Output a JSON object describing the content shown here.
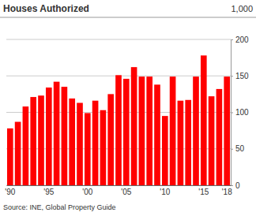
{
  "chart_data": {
    "type": "bar",
    "title": "Houses Authorized",
    "ylabel": "1,000",
    "annotations": [
      "Source: INE, Global Property Guide"
    ],
    "categories": [
      "'90",
      null,
      null,
      null,
      null,
      "'95",
      null,
      null,
      null,
      null,
      "'00",
      null,
      null,
      null,
      null,
      "'05",
      null,
      null,
      null,
      null,
      "'10",
      null,
      null,
      null,
      null,
      "'15",
      null,
      null,
      "'18"
    ],
    "values": [
      78,
      87,
      108,
      121,
      123,
      134,
      142,
      135,
      119,
      113,
      99,
      116,
      103,
      125,
      151,
      146,
      162,
      149,
      149,
      138,
      95,
      149,
      116,
      117,
      149,
      178,
      122,
      132,
      149
    ],
    "color": "#ff0000",
    "ylim": [
      0,
      200
    ],
    "yticks": [
      0,
      50,
      100,
      150,
      200
    ],
    "grid": true
  }
}
